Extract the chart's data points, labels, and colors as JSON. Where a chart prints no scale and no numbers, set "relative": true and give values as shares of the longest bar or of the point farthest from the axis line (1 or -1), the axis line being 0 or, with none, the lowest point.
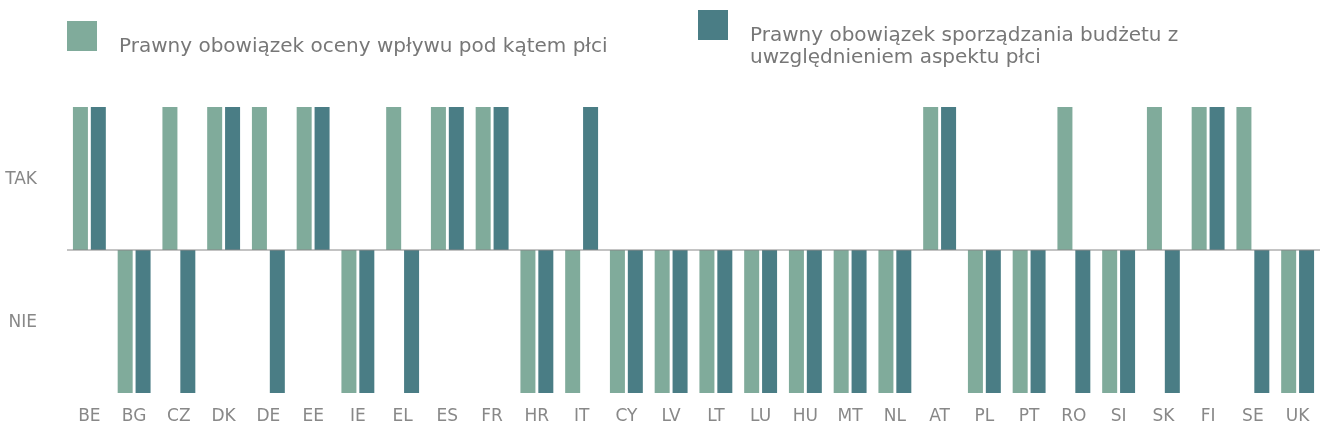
{
  "chart_data": {
    "type": "bar",
    "categories": [
      "BE",
      "BG",
      "CZ",
      "DK",
      "DE",
      "EE",
      "IE",
      "EL",
      "ES",
      "FR",
      "HR",
      "IT",
      "CY",
      "LV",
      "LT",
      "LU",
      "HU",
      "MT",
      "NL",
      "AT",
      "PL",
      "PT",
      "RO",
      "SI",
      "SK",
      "FI",
      "SE",
      "UK"
    ],
    "series": [
      {
        "name": "Prawny obowiązek oceny wpływu pod kątem płci",
        "color": "#80ab9b",
        "values": [
          1,
          -1,
          1,
          1,
          1,
          1,
          -1,
          1,
          1,
          1,
          -1,
          -1,
          -1,
          -1,
          -1,
          -1,
          -1,
          -1,
          -1,
          1,
          -1,
          -1,
          1,
          -1,
          1,
          1,
          1,
          -1
        ]
      },
      {
        "name": "Prawny obowiązek sporządzania budżetu z uwzględnieniem aspektu płci",
        "color": "#4a7d85",
        "values": [
          1,
          -1,
          -1,
          1,
          -1,
          1,
          -1,
          -1,
          1,
          1,
          -1,
          1,
          -1,
          -1,
          -1,
          -1,
          -1,
          -1,
          -1,
          1,
          -1,
          -1,
          -1,
          -1,
          -1,
          1,
          -1,
          -1
        ]
      }
    ],
    "relative": true,
    "annotations": [
      "TAK",
      "NIE"
    ],
    "grid": false,
    "legend": "top left"
  }
}
